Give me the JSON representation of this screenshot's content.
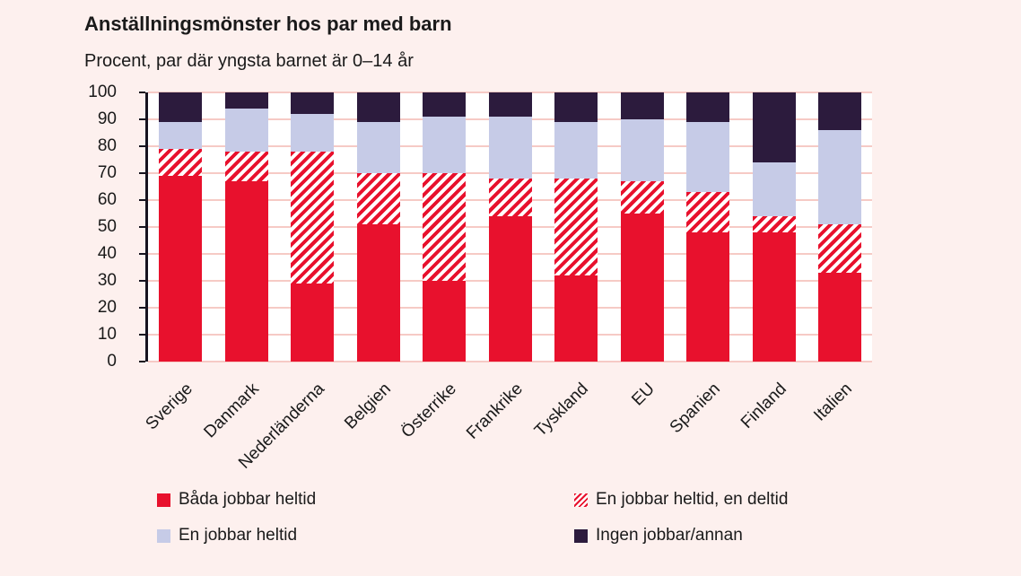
{
  "chart_data": {
    "type": "bar",
    "stacked": true,
    "title": "Anställningsmönster hos par med barn",
    "subtitle": "Procent, par där yngsta barnet är 0–14 år",
    "categories": [
      "Sverige",
      "Danmark",
      "Nederländerna",
      "Belgien",
      "Österrike",
      "Frankrike",
      "Tyskland",
      "EU",
      "Spanien",
      "Finland",
      "Italien"
    ],
    "series": [
      {
        "name": "Båda jobbar heltid",
        "style": "solid-red",
        "values": [
          69,
          67,
          29,
          51,
          30,
          54,
          32,
          55,
          48,
          48,
          33
        ]
      },
      {
        "name": "En jobbar heltid, en deltid",
        "style": "hatched-red",
        "values": [
          10,
          11,
          49,
          19,
          40,
          14,
          36,
          12,
          15,
          6,
          18
        ]
      },
      {
        "name": "En jobbar heltid",
        "style": "lavender",
        "values": [
          10,
          16,
          14,
          19,
          21,
          23,
          21,
          23,
          26,
          20,
          35
        ]
      },
      {
        "name": "Ingen jobbar/annan",
        "style": "dark-purple",
        "values": [
          11,
          6,
          8,
          11,
          9,
          9,
          11,
          10,
          11,
          26,
          14
        ]
      }
    ],
    "ylim": [
      0,
      100
    ],
    "ytick_step": 10,
    "grid": "horizontal",
    "legend_position": "bottom"
  },
  "legend": {
    "order": [
      0,
      1,
      2,
      3
    ]
  },
  "colors": {
    "background": "#fdf0ee",
    "plot_background": "#ffffff",
    "solid_red": "#e8112d",
    "lavender": "#c6cbe7",
    "dark_purple": "#2c1b3d",
    "gridline_pink": "#f6cac5",
    "axis_dark": "#16131f",
    "text": "#1a1a1a"
  }
}
